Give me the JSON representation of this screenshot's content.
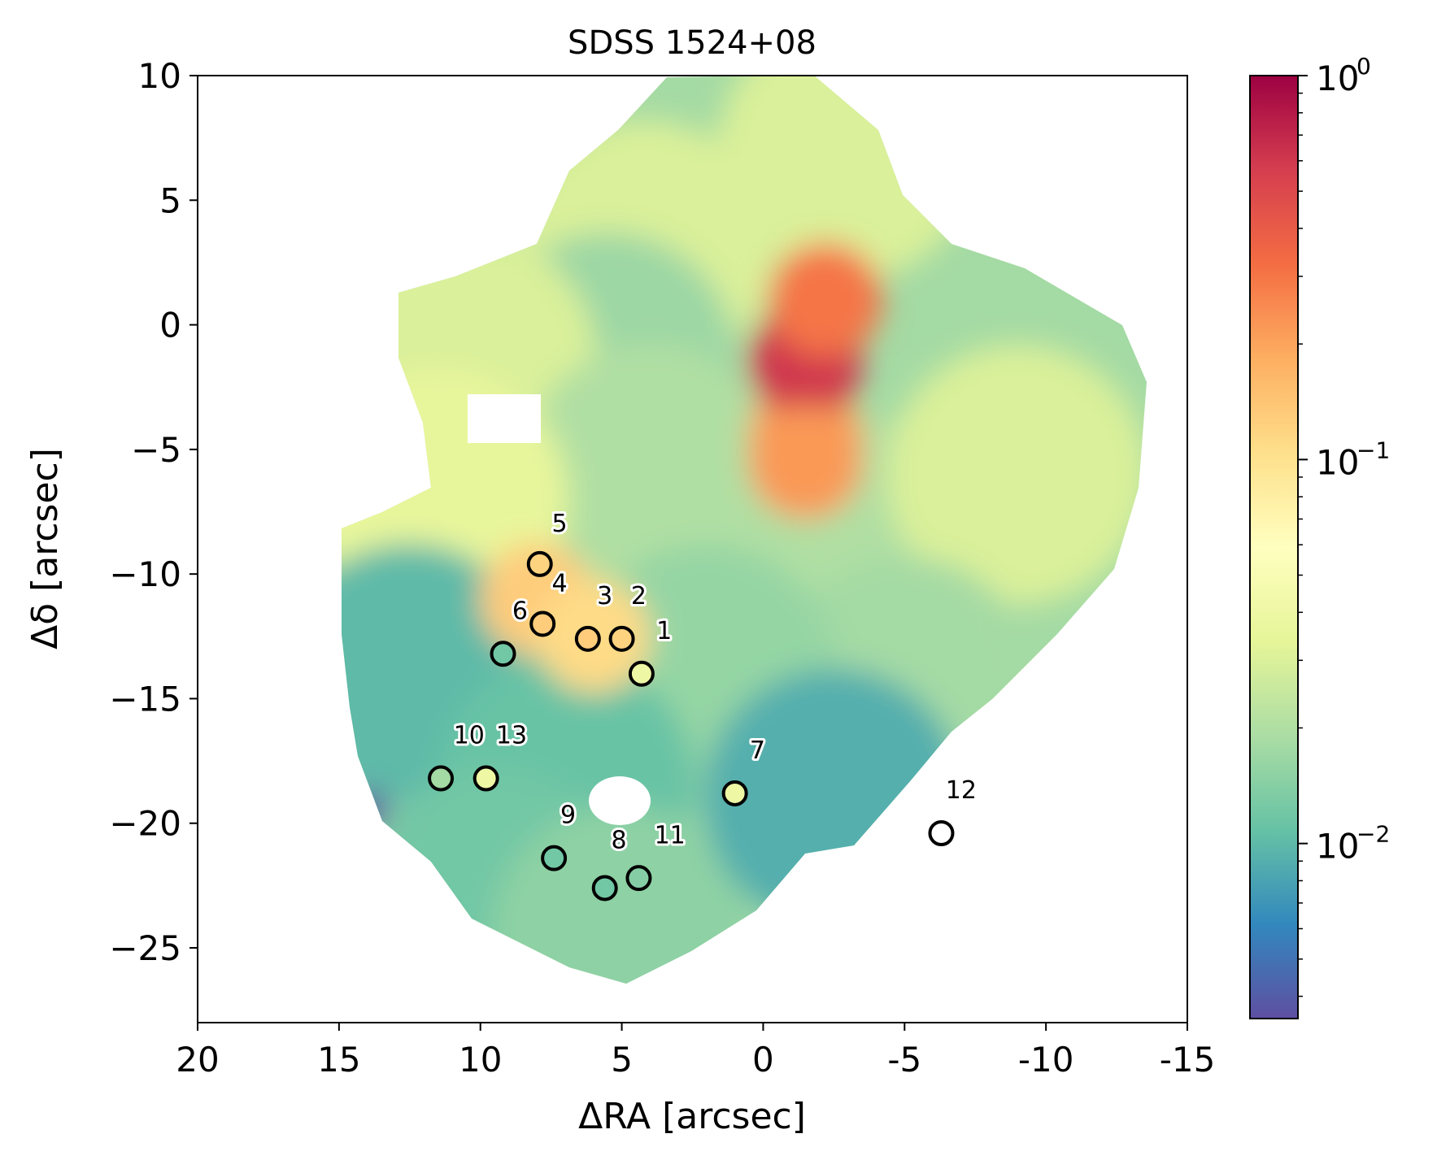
{
  "chart_data": {
    "type": "heatmap",
    "title": "SDSS 1524+08",
    "xlabel": "ΔRA [arcsec]",
    "ylabel": "Δδ [arcsec]",
    "xlim": [
      20,
      -15
    ],
    "ylim": [
      -28,
      10
    ],
    "xticks": [
      20,
      15,
      10,
      5,
      0,
      -5,
      -10,
      -15
    ],
    "xtick_labels": [
      "20",
      "15",
      "10",
      "5",
      "0",
      "-5",
      "-10",
      "-15"
    ],
    "yticks": [
      10,
      5,
      0,
      -5,
      -10,
      -15,
      -20,
      -25
    ],
    "ytick_labels": [
      "10",
      "5",
      "0",
      "−5",
      "−10",
      "−15",
      "−20",
      "−25"
    ],
    "colormap": "Spectral_r",
    "colorbar": {
      "scale": "log",
      "range": [
        0.0035,
        1.0
      ],
      "ticks": [
        {
          "value": 1.0,
          "base": "10",
          "exp": "0"
        },
        {
          "value": 0.1,
          "base": "10",
          "exp": "−1"
        },
        {
          "value": 0.01,
          "base": "10",
          "exp": "−2"
        }
      ],
      "colors": [
        "#5e4fa2",
        "#3288bd",
        "#66c2a5",
        "#abdda4",
        "#e6f598",
        "#ffffbf",
        "#fee08b",
        "#fdae61",
        "#f46d43",
        "#d53e4f",
        "#9e0142"
      ]
    },
    "emission_regions": [
      {
        "x": 4.2,
        "y": 3.0,
        "value": 0.03
      },
      {
        "x": -3.0,
        "y": 7.0,
        "value": 0.03
      },
      {
        "x": 5.5,
        "y": -1.5,
        "value": 0.017
      },
      {
        "x": 10.5,
        "y": -1.5,
        "value": 0.03
      },
      {
        "x": 4.0,
        "y": -6.0,
        "value": 0.02
      },
      {
        "x": 11.5,
        "y": -7.0,
        "value": 0.035
      },
      {
        "x": -4.0,
        "y": -9.0,
        "value": 0.02
      },
      {
        "x": -9.0,
        "y": -6.0,
        "value": 0.03
      },
      {
        "x": -5.0,
        "y": -14.5,
        "value": 0.018
      },
      {
        "x": 2.0,
        "y": -14.0,
        "value": 0.016
      },
      {
        "x": 12.5,
        "y": -14.0,
        "value": 0.01
      },
      {
        "x": 7.0,
        "y": -18.5,
        "value": 0.011
      },
      {
        "x": 9.5,
        "y": -23.0,
        "value": 0.012
      },
      {
        "x": 5.0,
        "y": -24.5,
        "value": 0.015
      },
      {
        "x": -2.5,
        "y": -19.0,
        "value": 0.009
      },
      {
        "x": -1.5,
        "y": -4.5,
        "value": 0.2
      },
      {
        "x": -1.5,
        "y": -1.5,
        "value": 0.6
      },
      {
        "x": -2.2,
        "y": 1.0,
        "value": 0.3
      },
      {
        "x": -1.5,
        "y": -5.5,
        "value": 0.22
      },
      {
        "x": 8.0,
        "y": -11.0,
        "value": 0.13
      },
      {
        "x": 6.0,
        "y": -12.5,
        "value": 0.11
      },
      {
        "x": 14.0,
        "y": -19.5,
        "value": 0.0035
      }
    ],
    "points": [
      {
        "label": "1",
        "x": 4.3,
        "y": -14.0,
        "value": 0.04
      },
      {
        "label": "2",
        "x": 5.0,
        "y": -12.6,
        "value": 0.12
      },
      {
        "label": "3",
        "x": 6.2,
        "y": -12.6,
        "value": 0.13
      },
      {
        "label": "4",
        "x": 7.8,
        "y": -12.0,
        "value": 0.13
      },
      {
        "label": "5",
        "x": 7.9,
        "y": -9.6,
        "value": 0.12
      },
      {
        "label": "6",
        "x": 9.2,
        "y": -13.2,
        "value": 0.012
      },
      {
        "label": "7",
        "x": 1.0,
        "y": -18.8,
        "value": 0.04
      },
      {
        "label": "8",
        "x": 5.6,
        "y": -22.6,
        "value": 0.012
      },
      {
        "label": "9",
        "x": 7.4,
        "y": -21.4,
        "value": 0.012
      },
      {
        "label": "10",
        "x": 11.4,
        "y": -18.2,
        "value": 0.018
      },
      {
        "label": "11",
        "x": 4.4,
        "y": -22.2,
        "value": 0.014
      },
      {
        "label": "12",
        "x": -6.3,
        "y": -20.4,
        "value": null
      },
      {
        "label": "13",
        "x": 9.8,
        "y": -18.2,
        "value": 0.04
      }
    ],
    "point_labels": [
      {
        "text": "5",
        "x": 7.2,
        "y": -8.3
      },
      {
        "text": "4",
        "x": 7.2,
        "y": -10.7
      },
      {
        "text": "3",
        "x": 5.6,
        "y": -11.2
      },
      {
        "text": "2",
        "x": 4.4,
        "y": -11.2
      },
      {
        "text": "6",
        "x": 8.6,
        "y": -11.8
      },
      {
        "text": "1",
        "x": 3.5,
        "y": -12.6
      },
      {
        "text": "10",
        "x": 10.4,
        "y": -16.8
      },
      {
        "text": "13",
        "x": 8.9,
        "y": -16.8
      },
      {
        "text": "7",
        "x": 0.2,
        "y": -17.4
      },
      {
        "text": "12",
        "x": -7.0,
        "y": -19.0
      },
      {
        "text": "9",
        "x": 6.9,
        "y": -20.0
      },
      {
        "text": "8",
        "x": 5.1,
        "y": -21.0
      },
      {
        "text": "11",
        "x": 3.3,
        "y": -20.8
      }
    ]
  }
}
